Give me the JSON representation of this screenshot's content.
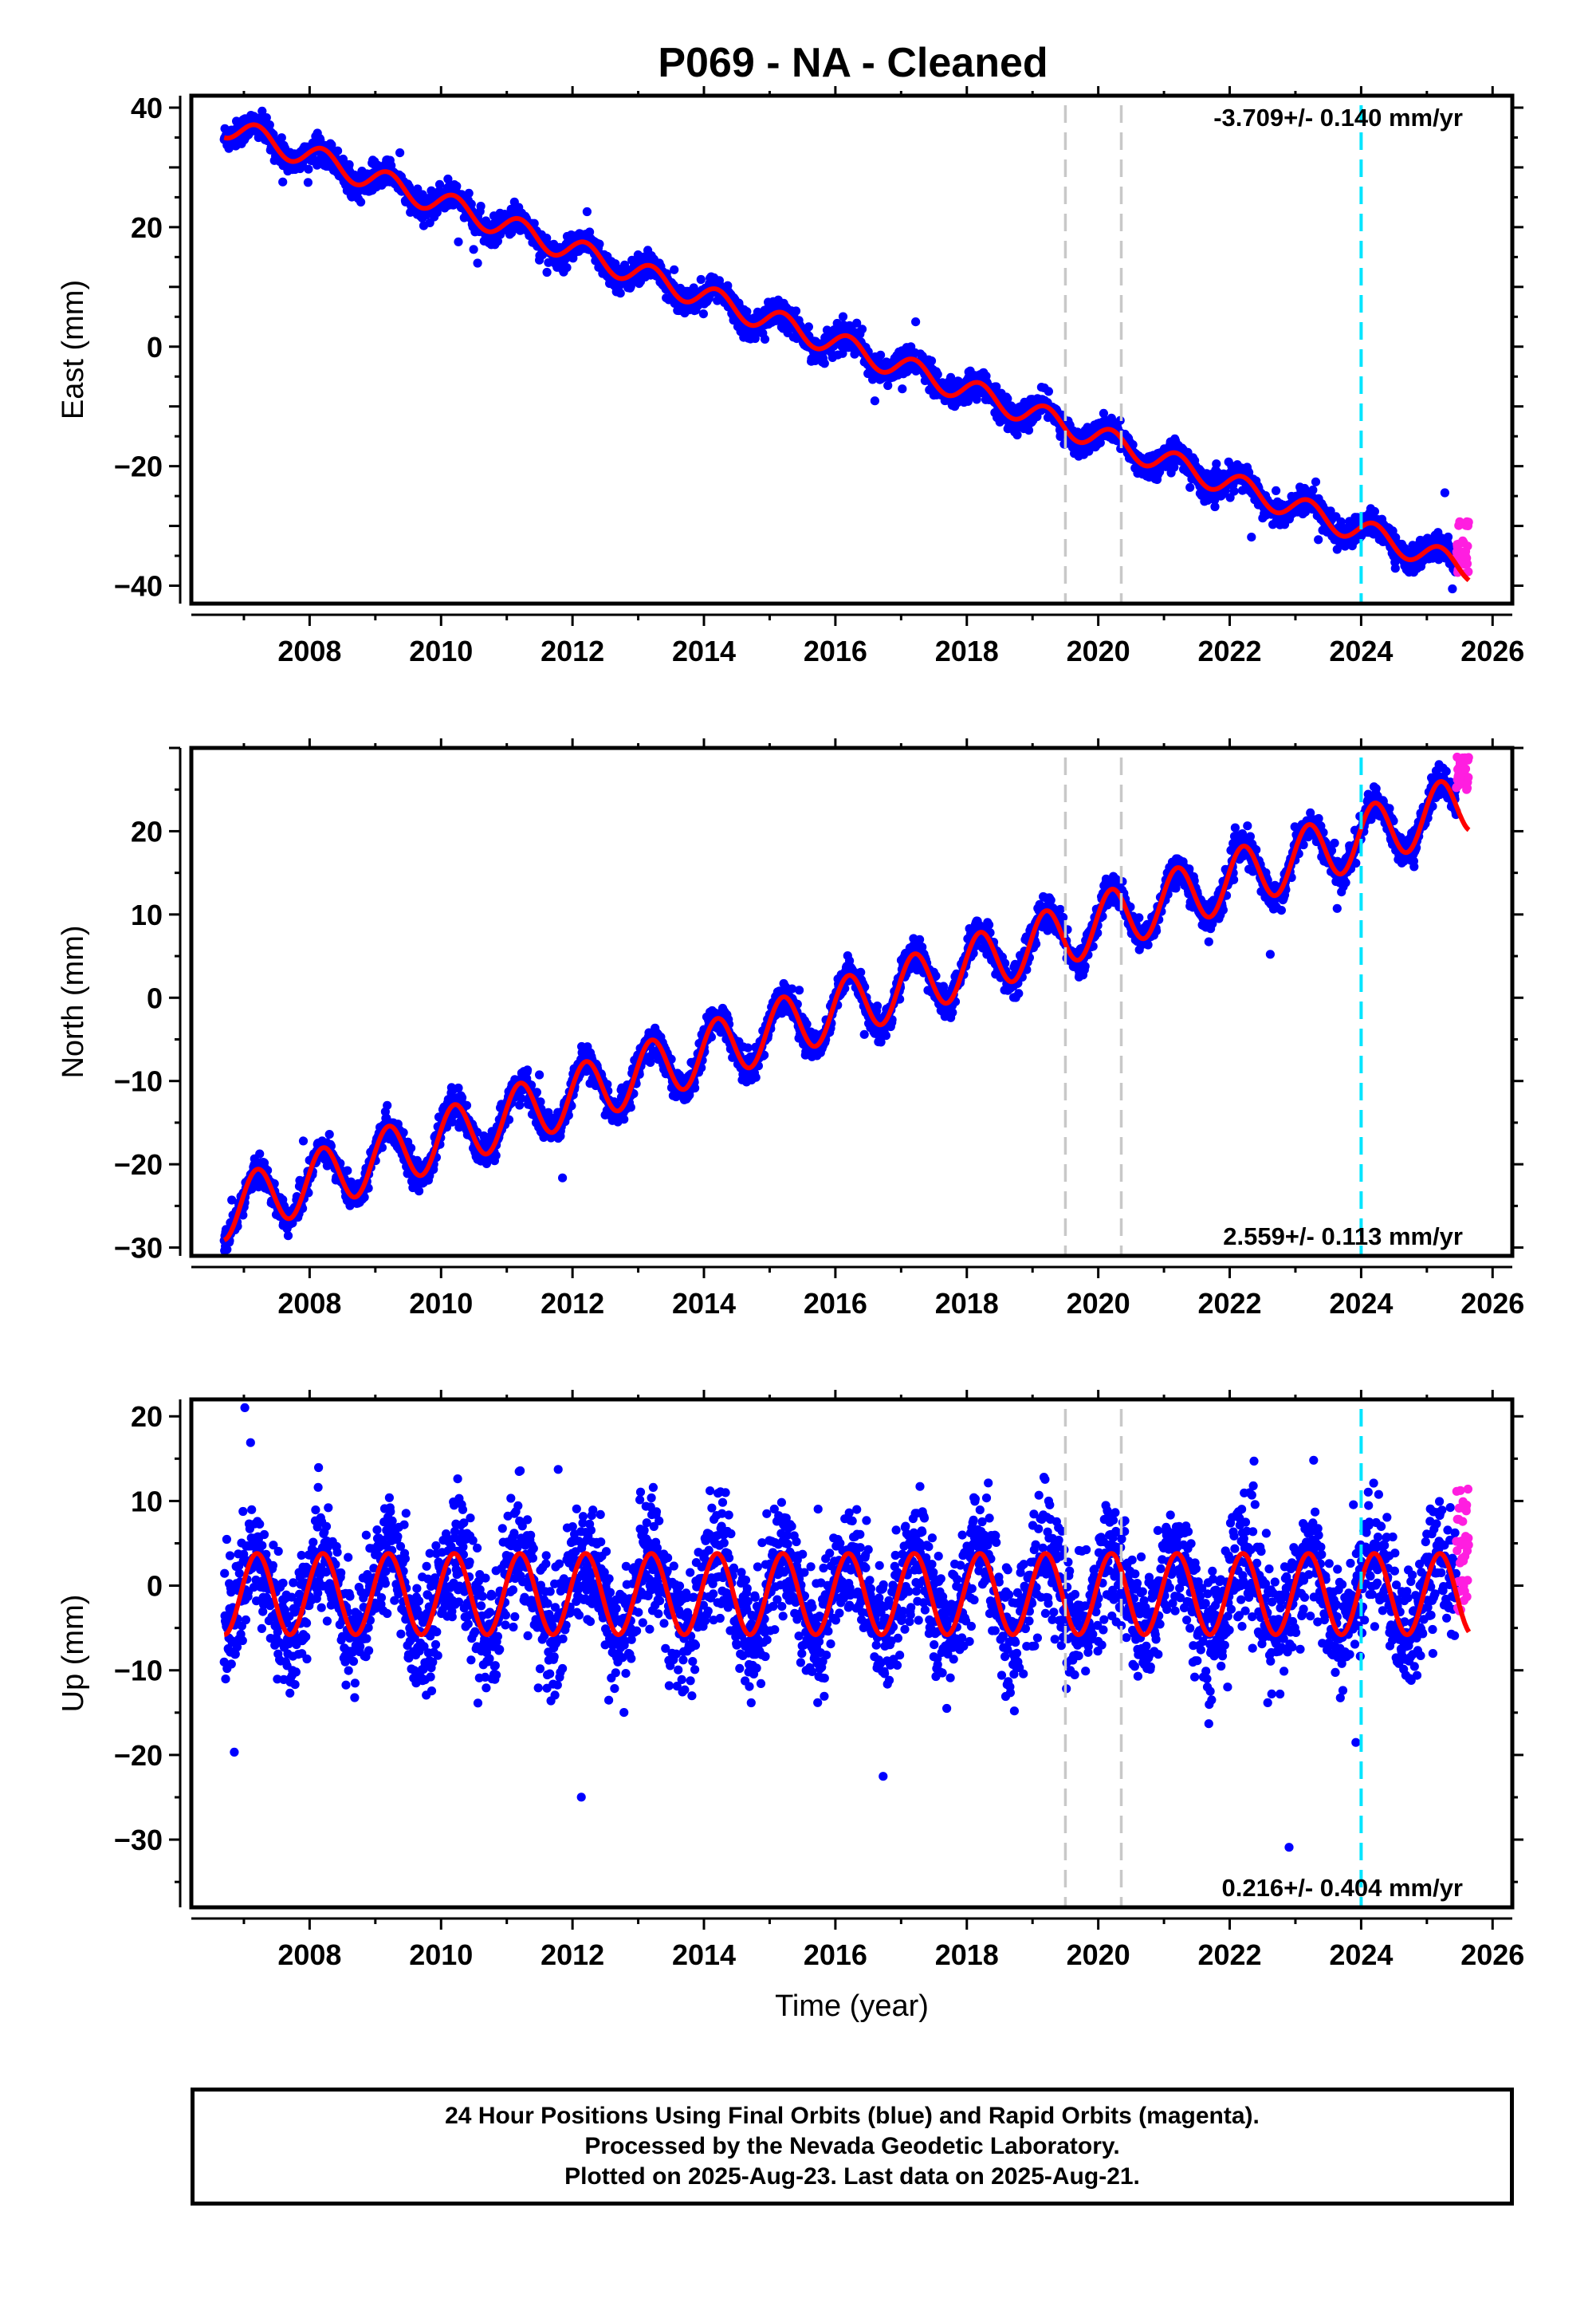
{
  "title": "P069  - NA - Cleaned",
  "colors": {
    "final_points": "#0000ff",
    "rapid_points": "#ff1ee0",
    "model": "#ff0000",
    "equipment_change": "#c8c8c8",
    "event": "#00e5ff"
  },
  "footer": {
    "line1": "24 Hour Positions Using Final Orbits (blue) and Rapid Orbits (magenta).",
    "line2": "Processed by the Nevada Geodetic Laboratory.",
    "line3": "Plotted on 2025-Aug-23. Last data on 2025-Aug-21."
  },
  "chart_data": [
    {
      "type": "scatter",
      "ylabel": "East (mm)",
      "xlabel": "",
      "rate_label": "-3.709+/- 0.140 mm/yr",
      "xlim": [
        2006.2,
        2026.3
      ],
      "ylim": [
        -43,
        42
      ],
      "x_ticks": [
        2008,
        2010,
        2012,
        2014,
        2016,
        2018,
        2020,
        2022,
        2024,
        2026
      ],
      "y_ticks": [
        -40,
        -20,
        0,
        20,
        40
      ],
      "series": [
        {
          "points": "final-orbits",
          "x_range": [
            2006.7,
            2025.45
          ],
          "start_value": 37.0,
          "end_value": -36.5,
          "rate_mm_per_yr": -3.709,
          "annual_amplitude": 2.0,
          "scatter_sd": 1.1
        },
        {
          "points": "rapid-orbits",
          "x_range": [
            2025.45,
            2025.64
          ],
          "y_range": [
            -38,
            -29
          ]
        },
        {
          "points": "model-fit",
          "x_range": [
            2006.7,
            2025.64
          ]
        }
      ],
      "vertical_lines": [
        {
          "x": 2019.5,
          "kind": "equipment_change"
        },
        {
          "x": 2020.35,
          "kind": "equipment_change"
        },
        {
          "x": 2024.0,
          "kind": "event"
        }
      ],
      "grid": false
    },
    {
      "type": "scatter",
      "ylabel": "North (mm)",
      "xlabel": "",
      "rate_label": "2.559+/- 0.113 mm/yr",
      "xlim": [
        2006.2,
        2026.3
      ],
      "ylim": [
        -31,
        30
      ],
      "x_ticks": [
        2008,
        2010,
        2012,
        2014,
        2016,
        2018,
        2020,
        2022,
        2024,
        2026
      ],
      "y_ticks": [
        -30,
        -20,
        -10,
        0,
        10,
        20
      ],
      "series": [
        {
          "points": "final-orbits",
          "x_range": [
            2006.7,
            2025.45
          ],
          "start_value": -25.5,
          "end_value": 23.0,
          "rate_mm_per_yr": 2.559,
          "annual_amplitude": 3.6,
          "scatter_sd": 0.9
        },
        {
          "points": "rapid-orbits",
          "x_range": [
            2025.45,
            2025.64
          ],
          "y_range": [
            25,
            29
          ]
        },
        {
          "points": "model-fit",
          "x_range": [
            2006.7,
            2025.64
          ]
        }
      ],
      "vertical_lines": [
        {
          "x": 2019.5,
          "kind": "equipment_change"
        },
        {
          "x": 2020.35,
          "kind": "equipment_change"
        },
        {
          "x": 2024.0,
          "kind": "event"
        }
      ],
      "grid": false
    },
    {
      "type": "scatter",
      "ylabel": "Up (mm)",
      "xlabel": "Time (year)",
      "rate_label": "0.216+/- 0.404 mm/yr",
      "xlim": [
        2006.2,
        2026.3
      ],
      "ylim": [
        -38,
        22
      ],
      "x_ticks": [
        2008,
        2010,
        2012,
        2014,
        2016,
        2018,
        2020,
        2022,
        2024,
        2026
      ],
      "y_ticks": [
        -30,
        -20,
        -10,
        0,
        10,
        20
      ],
      "series": [
        {
          "points": "final-orbits",
          "x_range": [
            2006.7,
            2025.45
          ],
          "start_value": -1.0,
          "end_value": -1.0,
          "rate_mm_per_yr": 0.216,
          "annual_amplitude": 4.8,
          "scatter_sd": 3.5
        },
        {
          "points": "rapid-orbits",
          "x_range": [
            2025.45,
            2025.64
          ],
          "y_range": [
            -3,
            13
          ]
        },
        {
          "points": "model-fit",
          "x_range": [
            2006.7,
            2025.64
          ]
        }
      ],
      "vertical_lines": [
        {
          "x": 2019.5,
          "kind": "equipment_change"
        },
        {
          "x": 2020.35,
          "kind": "equipment_change"
        },
        {
          "x": 2024.0,
          "kind": "event"
        }
      ],
      "grid": false
    }
  ]
}
